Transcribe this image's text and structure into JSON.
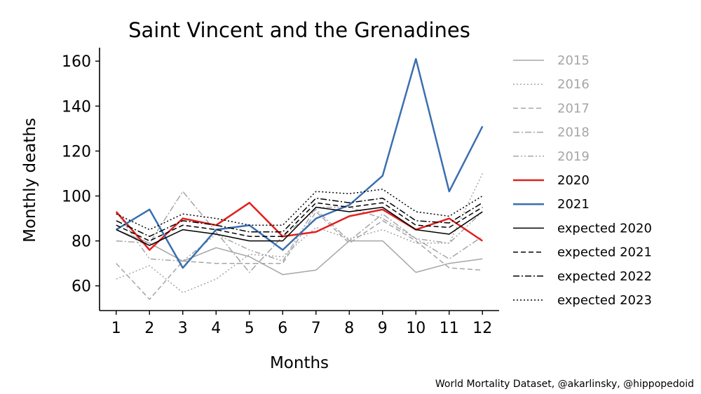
{
  "chart_data": {
    "type": "line",
    "title": "Saint Vincent and the Grenadines",
    "xlabel": "Months",
    "ylabel": "Monthly deaths",
    "x": [
      1,
      2,
      3,
      4,
      5,
      6,
      7,
      8,
      9,
      10,
      11,
      12
    ],
    "xticks": [
      "1",
      "2",
      "3",
      "4",
      "5",
      "6",
      "7",
      "8",
      "9",
      "10",
      "11",
      "12"
    ],
    "yticks": [
      "60",
      "80",
      "100",
      "120",
      "140",
      "160"
    ],
    "xlim": [
      0.5,
      12.5
    ],
    "ylim": [
      49,
      166
    ],
    "grid": false,
    "legend_position": "right, outside",
    "series": [
      {
        "name": "2015",
        "color": "#a6a6a6",
        "dash": "solid",
        "width": 1.5,
        "values": [
          85,
          79,
          71,
          77,
          73,
          65,
          67,
          80,
          80,
          66,
          70,
          72
        ]
      },
      {
        "name": "2016",
        "color": "#a6a6a6",
        "dash": "dotted",
        "width": 1.5,
        "values": [
          63,
          69,
          57,
          63,
          74,
          73,
          86,
          81,
          85,
          79,
          79,
          110
        ]
      },
      {
        "name": "2017",
        "color": "#a6a6a6",
        "dash": "dashed",
        "width": 1.5,
        "values": [
          70,
          54,
          71,
          70,
          70,
          70,
          93,
          79,
          89,
          80,
          68,
          67
        ]
      },
      {
        "name": "2018",
        "color": "#a6a6a6",
        "dash": "dashdot",
        "width": 1.5,
        "values": [
          80,
          79,
          102,
          84,
          66,
          82,
          94,
          80,
          92,
          81,
          72,
          82
        ]
      },
      {
        "name": "2019",
        "color": "#a6a6a6",
        "dash": "dashdotdot",
        "width": 1.5,
        "values": [
          93,
          72,
          71,
          83,
          76,
          71,
          95,
          95,
          90,
          81,
          79,
          93
        ]
      },
      {
        "name": "2020",
        "color": "#e0201f",
        "dash": "solid",
        "width": 2.5,
        "values": [
          93,
          76,
          90,
          87,
          97,
          82,
          84,
          91,
          94,
          85,
          90,
          80
        ]
      },
      {
        "name": "2021",
        "color": "#3a6fb0",
        "dash": "solid",
        "width": 2.5,
        "values": [
          85,
          94,
          68,
          85,
          87,
          76,
          90,
          96,
          109,
          161,
          102,
          131
        ]
      },
      {
        "name": "expected 2020",
        "color": "#000000",
        "dash": "solid",
        "width": 1.5,
        "values": [
          85,
          78,
          85,
          83,
          80,
          80,
          95,
          93,
          95,
          85,
          83,
          93
        ]
      },
      {
        "name": "expected 2021",
        "color": "#000000",
        "dash": "dashed",
        "width": 1.5,
        "values": [
          87,
          80,
          87,
          85,
          82,
          82,
          97,
          95,
          97,
          87,
          86,
          95
        ]
      },
      {
        "name": "expected 2022",
        "color": "#000000",
        "dash": "dashdot",
        "width": 1.5,
        "values": [
          89,
          82,
          89,
          87,
          84,
          84,
          99,
          97,
          99,
          89,
          88,
          97
        ]
      },
      {
        "name": "expected 2023",
        "color": "#000000",
        "dash": "dotted",
        "width": 1.5,
        "values": [
          92,
          85,
          92,
          90,
          87,
          87,
          102,
          101,
          103,
          93,
          91,
          100
        ]
      }
    ]
  },
  "credit": "World Mortality Dataset, @akarlinsky, @hippopedoid"
}
